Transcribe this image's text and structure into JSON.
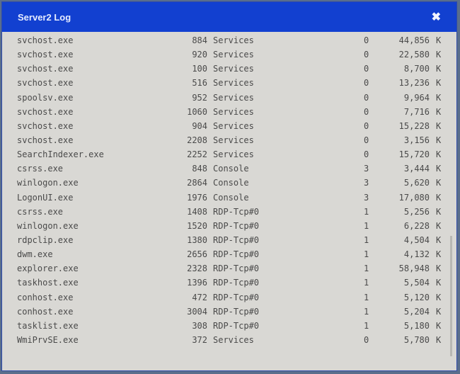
{
  "window": {
    "title": "Server2 Log",
    "close_icon": "close-icon"
  },
  "rows": [
    {
      "name": "svchost.exe",
      "pid": "884",
      "session": "Services",
      "session_num": "0",
      "mem": "44,856",
      "unit": "K"
    },
    {
      "name": "svchost.exe",
      "pid": "920",
      "session": "Services",
      "session_num": "0",
      "mem": "22,580",
      "unit": "K"
    },
    {
      "name": "svchost.exe",
      "pid": "100",
      "session": "Services",
      "session_num": "0",
      "mem": "8,700",
      "unit": "K"
    },
    {
      "name": "svchost.exe",
      "pid": "516",
      "session": "Services",
      "session_num": "0",
      "mem": "13,236",
      "unit": "K"
    },
    {
      "name": "spoolsv.exe",
      "pid": "952",
      "session": "Services",
      "session_num": "0",
      "mem": "9,964",
      "unit": "K"
    },
    {
      "name": "svchost.exe",
      "pid": "1060",
      "session": "Services",
      "session_num": "0",
      "mem": "7,716",
      "unit": "K"
    },
    {
      "name": "svchost.exe",
      "pid": "904",
      "session": "Services",
      "session_num": "0",
      "mem": "15,228",
      "unit": "K"
    },
    {
      "name": "svchost.exe",
      "pid": "2208",
      "session": "Services",
      "session_num": "0",
      "mem": "3,156",
      "unit": "K"
    },
    {
      "name": "SearchIndexer.exe",
      "pid": "2252",
      "session": "Services",
      "session_num": "0",
      "mem": "15,720",
      "unit": "K"
    },
    {
      "name": "csrss.exe",
      "pid": "848",
      "session": "Console",
      "session_num": "3",
      "mem": "3,444",
      "unit": "K"
    },
    {
      "name": "winlogon.exe",
      "pid": "2864",
      "session": "Console",
      "session_num": "3",
      "mem": "5,620",
      "unit": "K"
    },
    {
      "name": "LogonUI.exe",
      "pid": "1976",
      "session": "Console",
      "session_num": "3",
      "mem": "17,080",
      "unit": "K"
    },
    {
      "name": "csrss.exe",
      "pid": "1408",
      "session": "RDP-Tcp#0",
      "session_num": "1",
      "mem": "5,256",
      "unit": "K"
    },
    {
      "name": "winlogon.exe",
      "pid": "1520",
      "session": "RDP-Tcp#0",
      "session_num": "1",
      "mem": "6,228",
      "unit": "K"
    },
    {
      "name": "rdpclip.exe",
      "pid": "1380",
      "session": "RDP-Tcp#0",
      "session_num": "1",
      "mem": "4,504",
      "unit": "K"
    },
    {
      "name": "dwm.exe",
      "pid": "2656",
      "session": "RDP-Tcp#0",
      "session_num": "1",
      "mem": "4,132",
      "unit": "K"
    },
    {
      "name": "explorer.exe",
      "pid": "2328",
      "session": "RDP-Tcp#0",
      "session_num": "1",
      "mem": "58,948",
      "unit": "K"
    },
    {
      "name": "taskhost.exe",
      "pid": "1396",
      "session": "RDP-Tcp#0",
      "session_num": "1",
      "mem": "5,504",
      "unit": "K"
    },
    {
      "name": "conhost.exe",
      "pid": "472",
      "session": "RDP-Tcp#0",
      "session_num": "1",
      "mem": "5,120",
      "unit": "K"
    },
    {
      "name": "conhost.exe",
      "pid": "3004",
      "session": "RDP-Tcp#0",
      "session_num": "1",
      "mem": "5,204",
      "unit": "K"
    },
    {
      "name": "tasklist.exe",
      "pid": "308",
      "session": "RDP-Tcp#0",
      "session_num": "1",
      "mem": "5,180",
      "unit": "K"
    },
    {
      "name": "WmiPrvSE.exe",
      "pid": "372",
      "session": "Services",
      "session_num": "0",
      "mem": "5,780",
      "unit": "K"
    }
  ]
}
